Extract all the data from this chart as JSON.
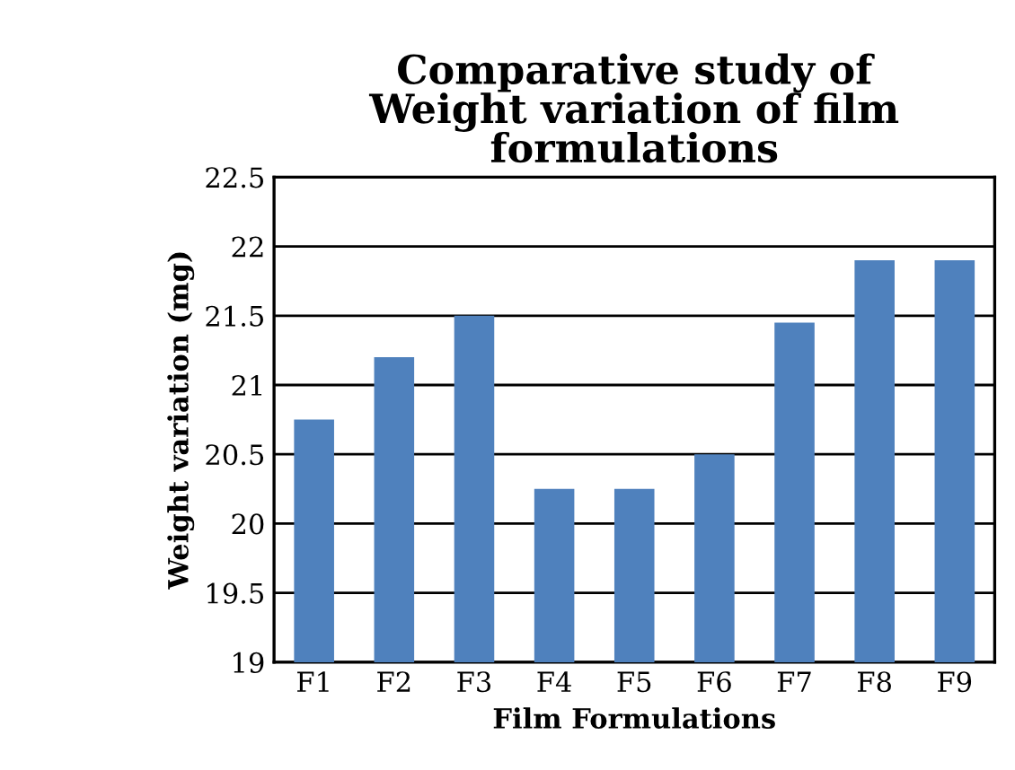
{
  "chart_data": {
    "type": "bar",
    "title": "Comparative study of\nWeight variation of ﬁlm\nformulations",
    "xlabel": "Film Formulations",
    "ylabel": "Weight variation (mg)",
    "categories": [
      "F1",
      "F2",
      "F3",
      "F4",
      "F5",
      "F6",
      "F7",
      "F8",
      "F9"
    ],
    "values": [
      20.75,
      21.2,
      21.5,
      20.25,
      20.25,
      20.5,
      21.45,
      21.9,
      21.9
    ],
    "color": "#4f81bd",
    "ylim": [
      19,
      22.5
    ],
    "yticks": [
      19,
      19.5,
      20,
      20.5,
      21,
      21.5,
      22,
      22.5
    ],
    "grid": "y",
    "legend": false
  }
}
